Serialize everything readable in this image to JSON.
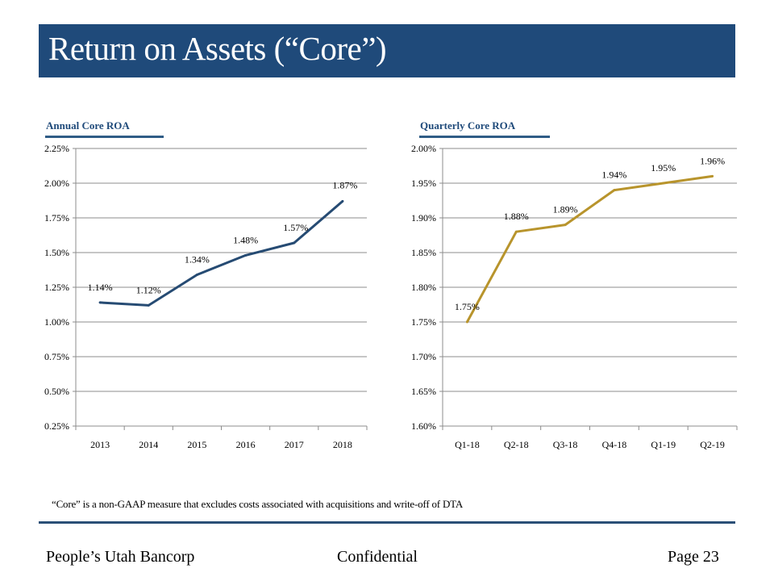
{
  "slide": {
    "title": "Return on Assets (“Core”)",
    "footnote": "“Core” is a non-GAAP measure that excludes costs associated with acquisitions and write-off of DTA",
    "footer": {
      "company": "People’s Utah Bancorp",
      "confidential": "Confidential",
      "page": "Page 23"
    },
    "colors": {
      "title_bar": "#1f4a7a",
      "annual_line": "#264b73",
      "quarterly_line": "#b8942c",
      "gridline": "#8c8c8c"
    }
  },
  "chart_data": [
    {
      "type": "line",
      "title": "Annual  Core ROA",
      "xlabel": "",
      "ylabel": "",
      "categories": [
        "2013",
        "2014",
        "2015",
        "2016",
        "2017",
        "2018"
      ],
      "values": [
        1.14,
        1.12,
        1.34,
        1.48,
        1.57,
        1.87
      ],
      "data_labels": [
        "1.14%",
        "1.12%",
        "1.34%",
        "1.48%",
        "1.57%",
        "1.87%"
      ],
      "ylim": [
        0.25,
        2.25
      ],
      "yticks": [
        0.25,
        0.5,
        0.75,
        1.0,
        1.25,
        1.5,
        1.75,
        2.0,
        2.25
      ],
      "ytick_labels": [
        "0.25%",
        "0.50%",
        "0.75%",
        "1.00%",
        "1.25%",
        "1.50%",
        "1.75%",
        "2.00%",
        "2.25%"
      ],
      "grid": true,
      "legend": "none",
      "line_color": "#264b73"
    },
    {
      "type": "line",
      "title": "Quarterly Core ROA",
      "xlabel": "",
      "ylabel": "",
      "categories": [
        "Q1-18",
        "Q2-18",
        "Q3-18",
        "Q4-18",
        "Q1-19",
        "Q2-19"
      ],
      "values": [
        1.75,
        1.88,
        1.89,
        1.94,
        1.95,
        1.96
      ],
      "data_labels": [
        "1.75%",
        "1.88%",
        "1.89%",
        "1.94%",
        "1.95%",
        "1.96%"
      ],
      "ylim": [
        1.6,
        2.0
      ],
      "yticks": [
        1.6,
        1.65,
        1.7,
        1.75,
        1.8,
        1.85,
        1.9,
        1.95,
        2.0
      ],
      "ytick_labels": [
        "1.60%",
        "1.65%",
        "1.70%",
        "1.75%",
        "1.80%",
        "1.85%",
        "1.90%",
        "1.95%",
        "2.00%"
      ],
      "grid": true,
      "legend": "none",
      "line_color": "#b8942c"
    }
  ]
}
